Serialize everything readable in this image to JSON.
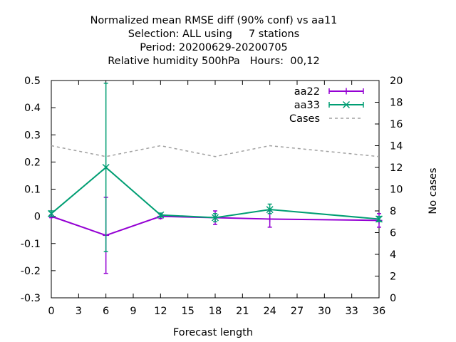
{
  "chart_data": {
    "type": "line",
    "title_lines": [
      "Normalized mean RMSE diff (90% conf) vs aa11",
      "Selection: ALL using     7 stations",
      "Period: 20200629-20200705",
      "Relative humidity 500hPa   Hours:  00,12"
    ],
    "xlabel": "Forecast length",
    "ylabel": "",
    "y2label": "No cases",
    "xlim": [
      0,
      36
    ],
    "ylim": [
      -0.3,
      0.5
    ],
    "y2lim": [
      0,
      20
    ],
    "x_ticks": [
      0,
      3,
      6,
      9,
      12,
      15,
      18,
      21,
      24,
      27,
      30,
      33,
      36
    ],
    "x_tick_labels": [
      "0",
      "3",
      "6",
      "9",
      "12",
      "15",
      "18",
      "21",
      "24",
      "27",
      "30",
      "33",
      "36"
    ],
    "y_ticks": [
      -0.3,
      -0.2,
      -0.1,
      0,
      0.1,
      0.2,
      0.3,
      0.4,
      0.5
    ],
    "y_tick_labels": [
      "-0.3",
      "-0.2",
      "-0.1",
      "0",
      "0.1",
      "0.2",
      "0.3",
      "0.4",
      "0.5"
    ],
    "y2_ticks": [
      0,
      2,
      4,
      6,
      8,
      10,
      12,
      14,
      16,
      18,
      20
    ],
    "y2_tick_labels": [
      "0",
      "2",
      "4",
      "6",
      "8",
      "10",
      "12",
      "14",
      "16",
      "18",
      "20"
    ],
    "grid": false,
    "legend_position": "top-right",
    "series": [
      {
        "name": "aa22",
        "axis": "y",
        "color": "#9400d3",
        "marker": "plus",
        "x": [
          0,
          6,
          12,
          18,
          24,
          36
        ],
        "y": [
          0.0,
          -0.07,
          0.0,
          -0.005,
          -0.01,
          -0.015
        ],
        "err_low": [
          -0.005,
          -0.21,
          -0.008,
          -0.03,
          -0.04,
          -0.04
        ],
        "err_high": [
          0.005,
          0.07,
          0.008,
          0.02,
          0.02,
          0.01
        ]
      },
      {
        "name": "aa33",
        "axis": "y",
        "color": "#009e73",
        "marker": "cross",
        "x": [
          0,
          6,
          12,
          18,
          24,
          36
        ],
        "y": [
          0.01,
          0.18,
          0.005,
          -0.005,
          0.025,
          -0.01
        ],
        "err_low": [
          0.0,
          -0.13,
          -0.003,
          -0.02,
          0.01,
          -0.02
        ],
        "err_high": [
          0.02,
          0.49,
          0.012,
          0.01,
          0.045,
          0.0
        ]
      },
      {
        "name": "Cases",
        "axis": "y2",
        "color": "#a0a0a0",
        "dashed": true,
        "x": [
          0,
          6,
          12,
          18,
          24,
          36
        ],
        "y": [
          14,
          13,
          14,
          13,
          14,
          13
        ]
      }
    ]
  }
}
